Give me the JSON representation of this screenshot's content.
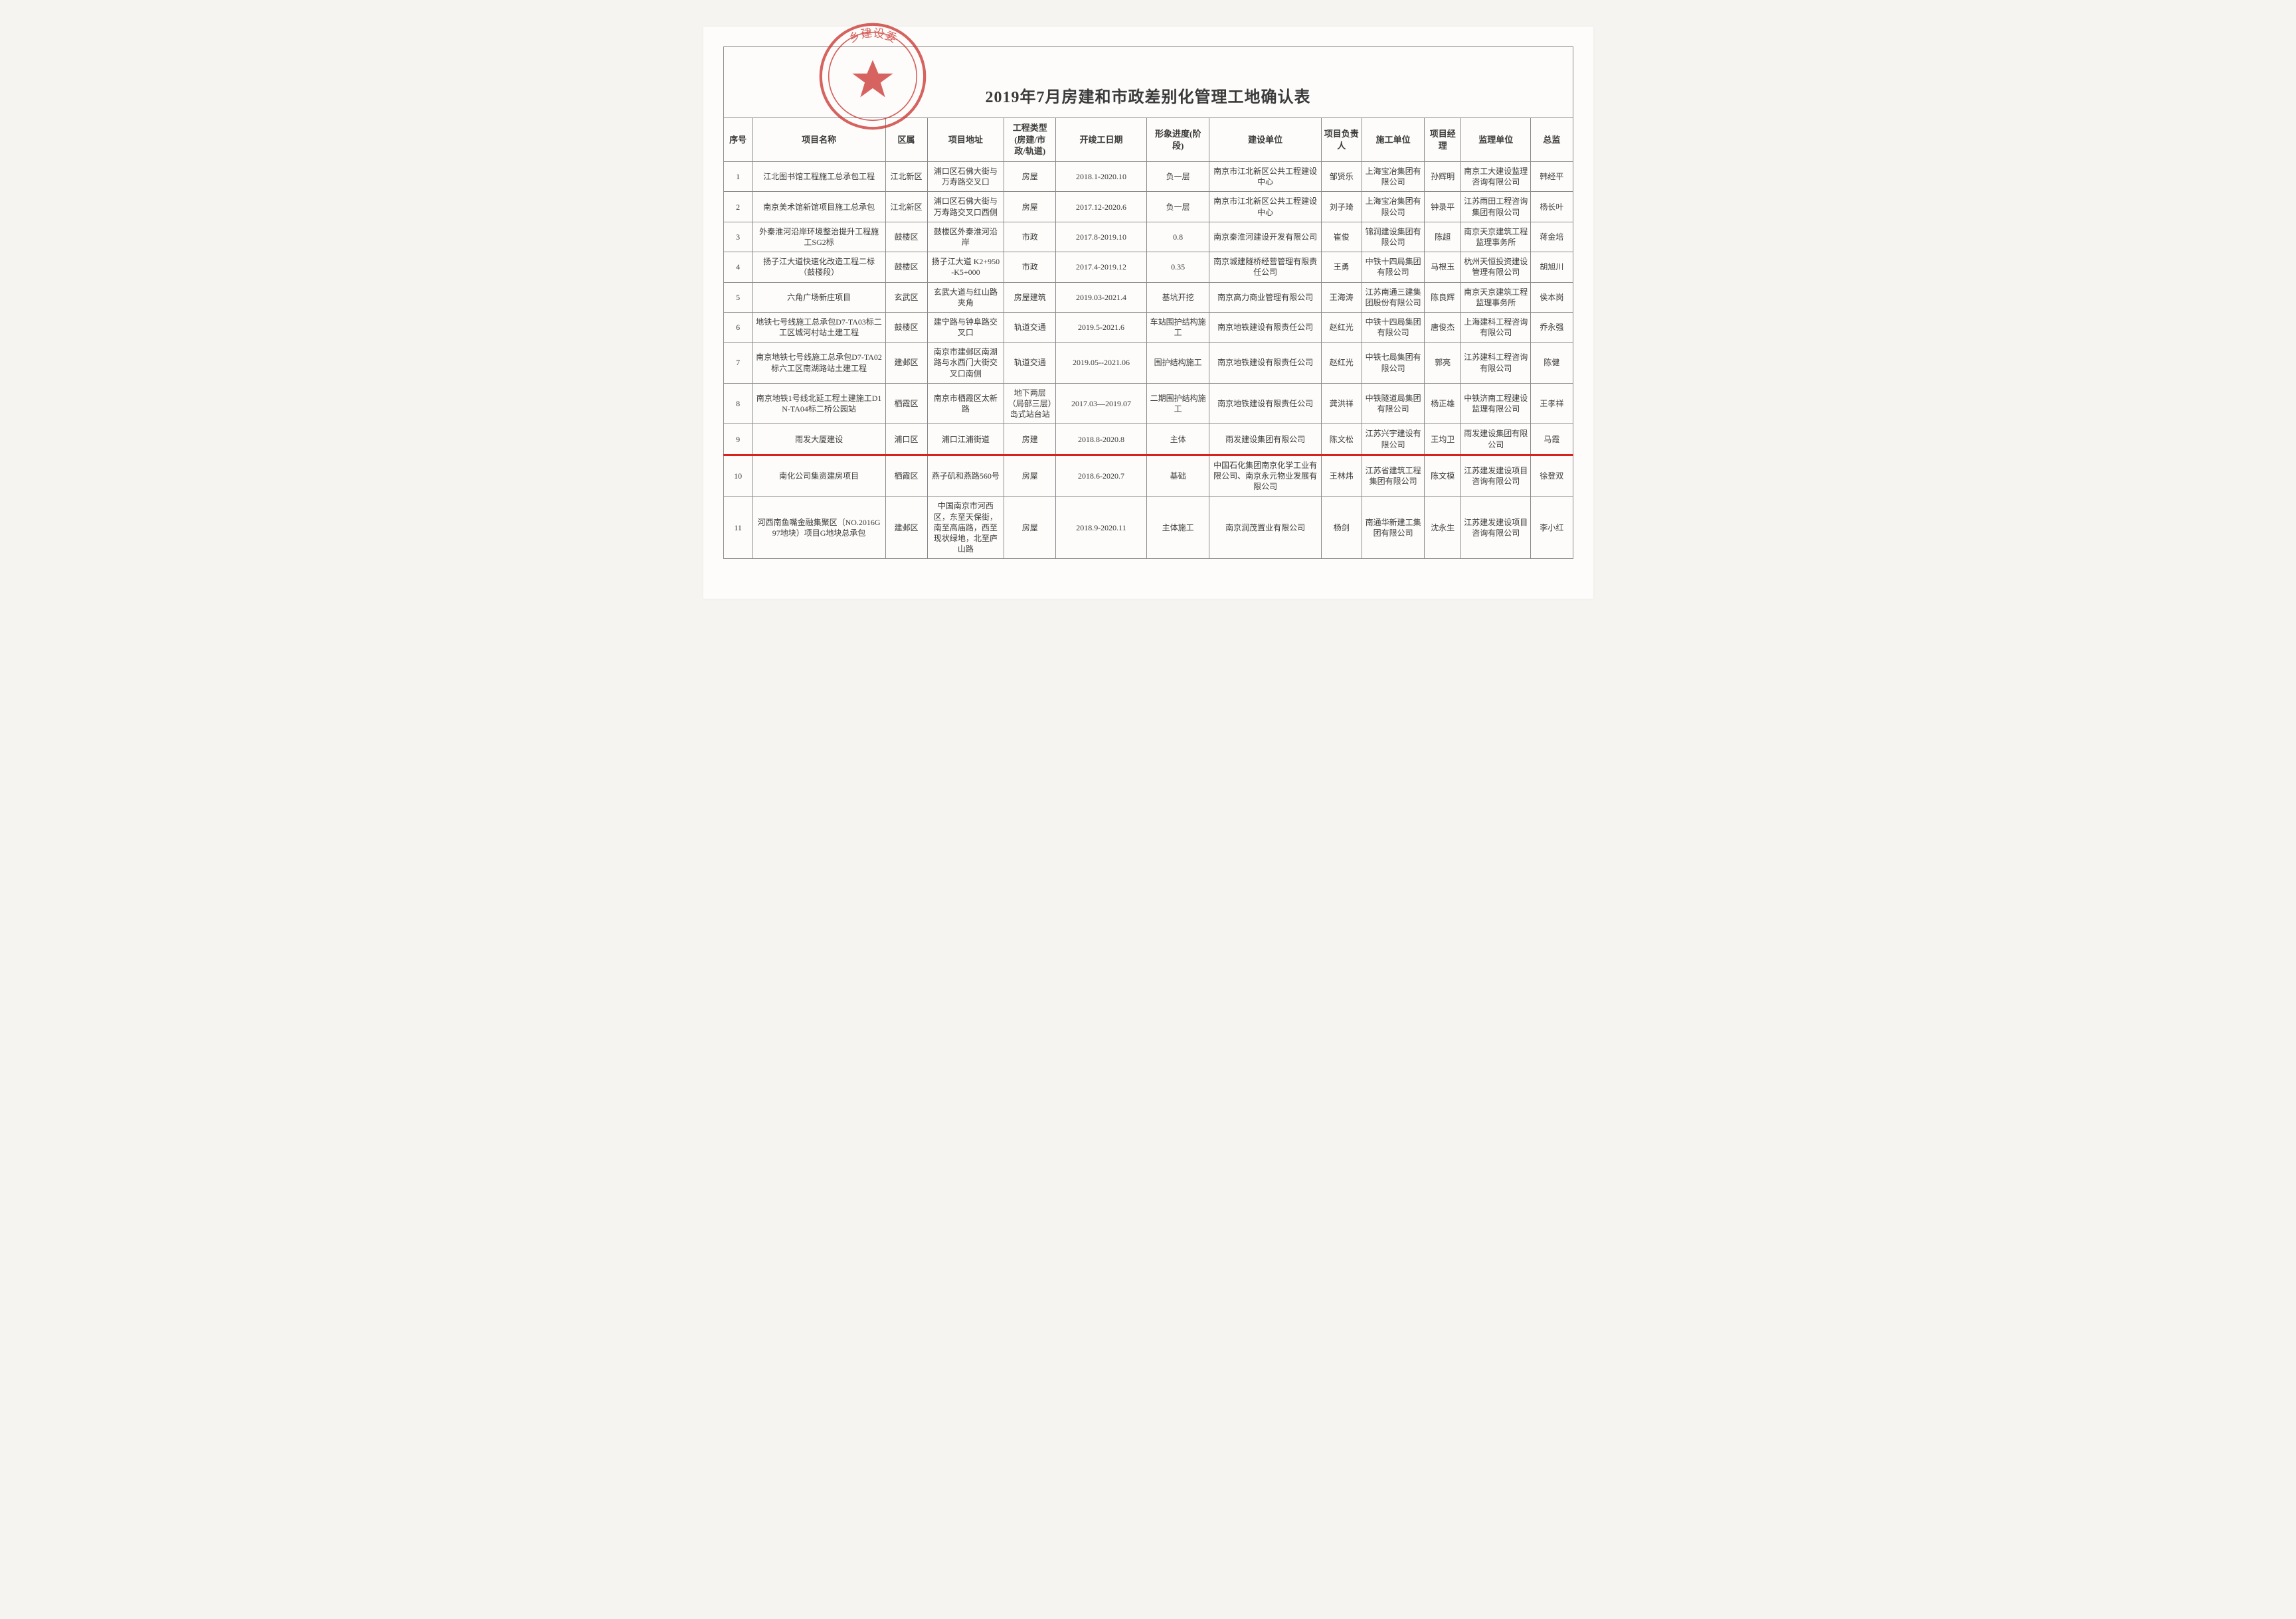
{
  "title": "2019年7月房建和市政差别化管理工地确认表",
  "stamp_text_top": "乡建设委",
  "stamp_text_bottom": "",
  "stamp_color": "#c9302c",
  "highlight_color": "#d8221e",
  "columns": [
    "序号",
    "项目名称",
    "区属",
    "项目地址",
    "工程类型\n(房建/市\n政/轨道)",
    "开竣工日期",
    "形象进度(阶\n段)",
    "建设单位",
    "项目负责\n人",
    "施工单位",
    "项目经\n理",
    "监理单位",
    "总监"
  ],
  "rows": [
    {
      "no": "1",
      "name": "江北图书馆工程施工总承包工程",
      "district": "江北新区",
      "addr": "浦口区石佛大街与万寿路交叉口",
      "type": "房屋",
      "dates": "2018.1-2020.10",
      "progress": "负一层",
      "owner": "南京市江北新区公共工程建设中心",
      "owner_mgr": "邹贤乐",
      "builder": "上海宝冶集团有限公司",
      "pm": "孙辉明",
      "supervisor": "南京工大建设监理咨询有限公司",
      "chief": "韩经平"
    },
    {
      "no": "2",
      "name": "南京美术馆新馆项目施工总承包",
      "district": "江北新区",
      "addr": "浦口区石佛大街与万寿路交叉口西侧",
      "type": "房屋",
      "dates": "2017.12-2020.6",
      "progress": "负一层",
      "owner": "南京市江北新区公共工程建设中心",
      "owner_mgr": "刘子琦",
      "builder": "上海宝冶集团有限公司",
      "pm": "钟录平",
      "supervisor": "江苏雨田工程咨询集团有限公司",
      "chief": "杨长叶"
    },
    {
      "no": "3",
      "name": "外秦淮河沿岸环境整治提升工程施工SG2标",
      "district": "鼓楼区",
      "addr": "鼓楼区外秦淮河沿岸",
      "type": "市政",
      "dates": "2017.8-2019.10",
      "progress": "0.8",
      "owner": "南京秦淮河建设开发有限公司",
      "owner_mgr": "崔俊",
      "builder": "锦润建设集团有限公司",
      "pm": "陈超",
      "supervisor": "南京天京建筑工程监理事务所",
      "chief": "蒋金培"
    },
    {
      "no": "4",
      "name": "扬子江大道快速化改造工程二标（鼓楼段）",
      "district": "鼓楼区",
      "addr": "扬子江大道 K2+950 -K5+000",
      "type": "市政",
      "dates": "2017.4-2019.12",
      "progress": "0.35",
      "owner": "南京城建隧桥经营管理有限责任公司",
      "owner_mgr": "王勇",
      "builder": "中铁十四局集团有限公司",
      "pm": "马根玉",
      "supervisor": "杭州天恒投资建设管理有限公司",
      "chief": "胡旭川"
    },
    {
      "no": "5",
      "name": "六角广场新庄项目",
      "district": "玄武区",
      "addr": "玄武大道与红山路夹角",
      "type": "房屋建筑",
      "dates": "2019.03-2021.4",
      "progress": "基坑开挖",
      "owner": "南京高力商业管理有限公司",
      "owner_mgr": "王海涛",
      "builder": "江苏南通三建集团股份有限公司",
      "pm": "陈良辉",
      "supervisor": "南京天京建筑工程监理事务所",
      "chief": "侯本岗"
    },
    {
      "no": "6",
      "name": "地铁七号线施工总承包D7-TA03标二工区城河村站土建工程",
      "district": "鼓楼区",
      "addr": "建宁路与钟阜路交叉口",
      "type": "轨道交通",
      "dates": "2019.5-2021.6",
      "progress": "车站围护结构施工",
      "owner": "南京地铁建设有限责任公司",
      "owner_mgr": "赵红光",
      "builder": "中铁十四局集团有限公司",
      "pm": "唐俊杰",
      "supervisor": "上海建科工程咨询有限公司",
      "chief": "乔永强"
    },
    {
      "no": "7",
      "name": "南京地铁七号线施工总承包D7-TA02标六工区南湖路站土建工程",
      "district": "建邺区",
      "addr": "南京市建邺区南湖路与水西门大街交叉口南侧",
      "type": "轨道交通",
      "dates": "2019.05--2021.06",
      "progress": "围护结构施工",
      "owner": "南京地铁建设有限责任公司",
      "owner_mgr": "赵红光",
      "builder": "中铁七局集团有限公司",
      "pm": "郭亮",
      "supervisor": "江苏建科工程咨询有限公司",
      "chief": "陈健"
    },
    {
      "no": "8",
      "name": "南京地铁1号线北延工程土建施工D1N-TA04标二桥公园站",
      "district": "栖霞区",
      "addr": "南京市栖霞区太新路",
      "type": "地下两层（局部三层）岛式站台站",
      "dates": "2017.03—2019.07",
      "progress": "二期围护结构施工",
      "owner": "南京地铁建设有限责任公司",
      "owner_mgr": "龚洪祥",
      "builder": "中铁隧道局集团有限公司",
      "pm": "杨正雄",
      "supervisor": "中铁济南工程建设监理有限公司",
      "chief": "王孝祥"
    },
    {
      "no": "9",
      "name": "雨发大厦建设",
      "district": "浦口区",
      "addr": "浦口江浦街道",
      "type": "房建",
      "dates": "2018.8-2020.8",
      "progress": "主体",
      "owner": "雨发建设集团有限公司",
      "owner_mgr": "陈文松",
      "builder": "江苏兴宇建设有限公司",
      "pm": "王均卫",
      "supervisor": "雨发建设集团有限公司",
      "chief": "马霞",
      "highlight": true
    },
    {
      "no": "10",
      "name": "南化公司集资建房项目",
      "district": "栖霞区",
      "addr": "燕子矶和燕路560号",
      "type": "房屋",
      "dates": "2018.6-2020.7",
      "progress": "基础",
      "owner": "中国石化集团南京化学工业有限公司、南京永元物业发展有限公司",
      "owner_mgr": "王林炜",
      "builder": "江苏省建筑工程集团有限公司",
      "pm": "陈文模",
      "supervisor": "江苏建发建设项目咨询有限公司",
      "chief": "徐登双"
    },
    {
      "no": "11",
      "name": "河西南鱼嘴金融集聚区（NO.2016G97地块）项目G地块总承包",
      "district": "建邺区",
      "addr": "中国南京市河西区，东至天保街，南至高庙路，西至现状绿地，北至庐山路",
      "type": "房屋",
      "dates": "2018.9-2020.11",
      "progress": "主体施工",
      "owner": "南京润茂置业有限公司",
      "owner_mgr": "杨剑",
      "builder": "南通华新建工集团有限公司",
      "pm": "沈永生",
      "supervisor": "江苏建发建设项目咨询有限公司",
      "chief": "李小红"
    }
  ],
  "cell_keys": [
    "no",
    "name",
    "district",
    "addr",
    "type",
    "dates",
    "progress",
    "owner",
    "owner_mgr",
    "builder",
    "pm",
    "supervisor",
    "chief"
  ]
}
